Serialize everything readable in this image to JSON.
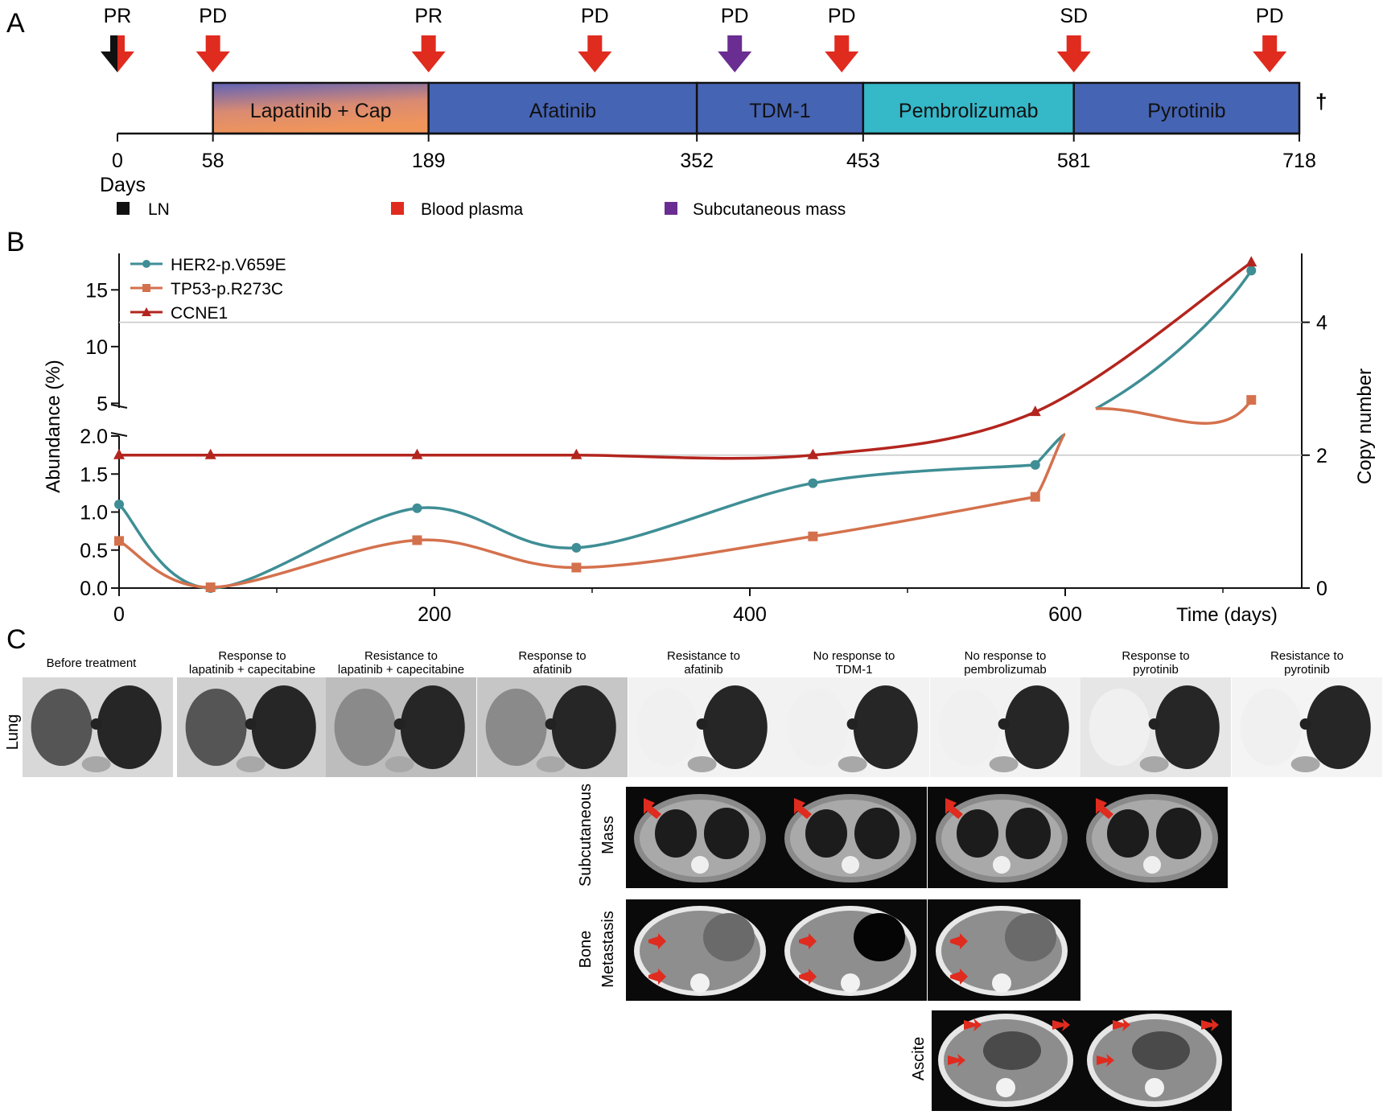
{
  "panels": {
    "a": "A",
    "b": "B",
    "c": "C"
  },
  "timeline": {
    "events": [
      {
        "day": 0,
        "response": "PR",
        "sample": "LN+plasma"
      },
      {
        "day": 58,
        "response": "PD",
        "sample": "plasma"
      },
      {
        "day": 189,
        "response": "PR",
        "sample": "plasma"
      },
      {
        "day": 290,
        "response": "PD",
        "sample": "plasma"
      },
      {
        "day": 375,
        "response": "PD",
        "sample": "subcutaneous"
      },
      {
        "day": 440,
        "response": "PD",
        "sample": "plasma"
      },
      {
        "day": 581,
        "response": "SD",
        "sample": "plasma"
      },
      {
        "day": 700,
        "response": "PD",
        "sample": "plasma"
      }
    ],
    "treatments": [
      {
        "label": "Lapatinib + Cap",
        "start": 58,
        "end": 189,
        "color": "gradient"
      },
      {
        "label": "Afatinib",
        "start": 189,
        "end": 352,
        "color": "#4664b4"
      },
      {
        "label": "TDM-1",
        "start": 352,
        "end": 453,
        "color": "#4664b4"
      },
      {
        "label": "Pembrolizumab",
        "start": 453,
        "end": 581,
        "color": "#35b8c8"
      },
      {
        "label": "Pyrotinib",
        "start": 581,
        "end": 718,
        "color": "#4664b4"
      }
    ],
    "axis_ticks": [
      "0",
      "58",
      "189",
      "352",
      "453",
      "581",
      "718"
    ],
    "days_label": "Days",
    "death_marker": "†",
    "legend": [
      {
        "label": "LN",
        "color": "#111111"
      },
      {
        "label": "Blood plasma",
        "color": "#e02b1f"
      },
      {
        "label": "Subcutaneous mass",
        "color": "#6a2d91"
      }
    ]
  },
  "chart_data": {
    "type": "line",
    "xlabel": "Time (days)",
    "ylabel_left": "Abundance (%)",
    "ylabel_right": "Copy number",
    "x_ticks": [
      "0",
      "200",
      "400",
      "600"
    ],
    "y_ticks_lower": [
      "0.0",
      "0.5",
      "1.0",
      "1.5",
      "2.0"
    ],
    "y_ticks_upper": [
      "5",
      "10",
      "15"
    ],
    "y_ticks_right": [
      "0",
      "2",
      "4"
    ],
    "xlim": [
      0,
      750
    ],
    "ylim_lower": [
      0,
      2.0
    ],
    "ylim_upper": [
      4.6,
      18
    ],
    "ylim_right": [
      0,
      5
    ],
    "series": [
      {
        "name": "HER2-p.V659E",
        "axis": "left",
        "color": "#3f8e95",
        "x": [
          0,
          58,
          189,
          290,
          440,
          581,
          718
        ],
        "y": [
          1.1,
          0.0,
          1.05,
          0.53,
          1.38,
          1.62,
          16.7
        ]
      },
      {
        "name": "TP53-p.R273C",
        "axis": "left",
        "color": "#d4714d",
        "x": [
          0,
          58,
          189,
          290,
          440,
          581,
          718
        ],
        "y": [
          0.62,
          0.01,
          0.63,
          0.27,
          0.68,
          1.2,
          5.3
        ]
      },
      {
        "name": "CCNE1",
        "axis": "right",
        "color": "#b3251e",
        "x": [
          0,
          58,
          189,
          290,
          440,
          581,
          718
        ],
        "y": [
          2,
          2,
          2,
          2,
          2,
          2.65,
          4.9
        ]
      }
    ]
  },
  "images": {
    "columns": [
      "Before treatment",
      "Response to\nlapatinib + capecitabine",
      "Resistance to\nlapatinib + capecitabine",
      "Response to\nafatinib",
      "Resistance to\nafatinib",
      "No response to\nTDM-1",
      "No response to\npembrolizumab",
      "Response to\npyrotinib",
      "Resistance to\npyrotinib"
    ],
    "rows": {
      "lung": "Lung",
      "subcutaneous_1": "Subcutaneous",
      "subcutaneous_2": "Mass",
      "bone_1": "Bone",
      "bone_2": "Metastasis",
      "ascite": "Ascite"
    }
  }
}
